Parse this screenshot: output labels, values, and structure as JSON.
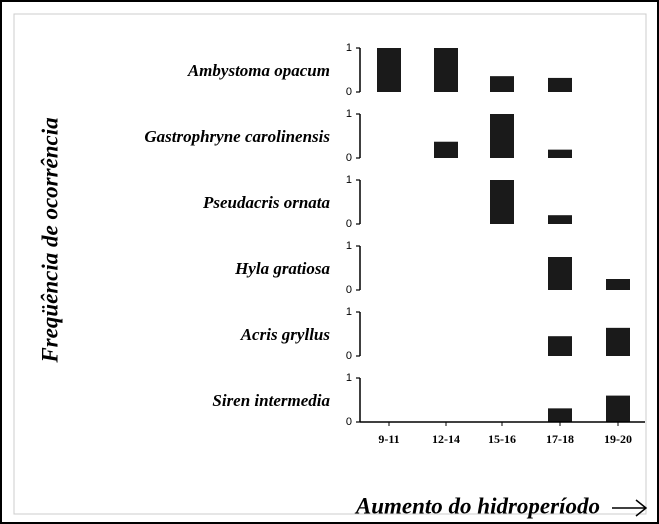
{
  "chart_data": {
    "type": "bar",
    "ylabel": "Freqüência de ocorrência",
    "xlabel": "Aumento do hidroperíodo",
    "categories": [
      "9-11",
      "12-14",
      "15-16",
      "17-18",
      "19-20"
    ],
    "ylim": [
      0,
      1
    ],
    "yticks": [
      0,
      1
    ],
    "color": "#1a1a1a",
    "series": [
      {
        "name": "Ambystoma opacum",
        "values": [
          1,
          1,
          0.36,
          0.32,
          0
        ]
      },
      {
        "name": "Gastrophryne carolinensis",
        "values": [
          0,
          0.37,
          1,
          0.19,
          0
        ]
      },
      {
        "name": "Pseudacris ornata",
        "values": [
          0,
          0,
          1,
          0.2,
          0
        ]
      },
      {
        "name": "Hyla gratiosa",
        "values": [
          0,
          0,
          0,
          0.75,
          0.25
        ]
      },
      {
        "name": "Acris gryllus",
        "values": [
          0,
          0,
          0,
          0.45,
          0.64
        ]
      },
      {
        "name": "Siren intermedia",
        "values": [
          0,
          0,
          0,
          0.31,
          0.6
        ]
      }
    ]
  }
}
